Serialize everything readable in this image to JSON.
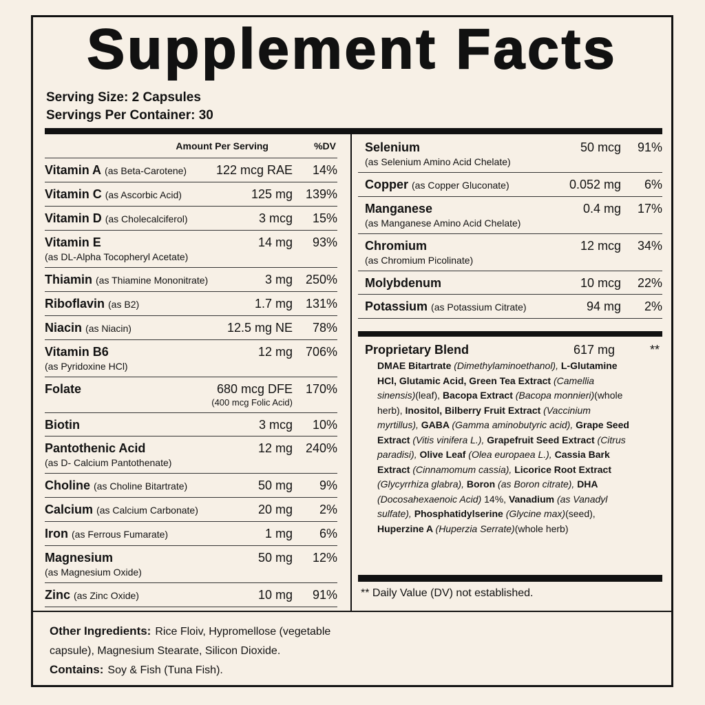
{
  "title": "Supplement Facts",
  "serving_size": "Serving Size: 2 Capsules",
  "servings_per_container": "Servings Per Container: 30",
  "left_column": {
    "header": {
      "amount": "Amount Per Serving",
      "dv": "%DV"
    },
    "rows": [
      {
        "name": "Vitamin A",
        "source": "(as Beta-Carotene)",
        "amount": "122 mcg RAE",
        "dv": "14%"
      },
      {
        "name": "Vitamin C",
        "source": "(as Ascorbic Acid)",
        "amount": "125 mg",
        "dv": "139%"
      },
      {
        "name": "Vitamin D",
        "source": "(as Cholecalciferol)",
        "amount": "3 mcg",
        "dv": "15%"
      },
      {
        "name": "Vitamin E",
        "note": "(as DL-Alpha Tocopheryl Acetate)",
        "amount": "14 mg",
        "dv": "93%"
      },
      {
        "name": "Thiamin",
        "source": "(as Thiamine Mononitrate)",
        "amount": "3 mg",
        "dv": "250%"
      },
      {
        "name": "Riboflavin",
        "source": "(as B2)",
        "amount": "1.7 mg",
        "dv": "131%"
      },
      {
        "name": "Niacin",
        "source": "(as Niacin)",
        "amount": "12.5 mg NE",
        "dv": "78%"
      },
      {
        "name": "Vitamin B6",
        "note": "(as Pyridoxine HCl)",
        "amount": "12 mg",
        "dv": "706%"
      },
      {
        "name": "Folate",
        "amount": "680 mcg DFE",
        "amount_note": "(400 mcg Folic Acid)",
        "dv": "170%"
      },
      {
        "name": "Biotin",
        "amount": "3 mcg",
        "dv": "10%"
      },
      {
        "name": "Pantothenic Acid",
        "note": "(as D- Calcium Pantothenate)",
        "amount": "12 mg",
        "dv": "240%"
      },
      {
        "name": "Choline",
        "source": "(as Choline Bitartrate)",
        "amount": "50 mg",
        "dv": "9%"
      },
      {
        "name": "Calcium",
        "source": "(as Calcium Carbonate)",
        "amount": "20 mg",
        "dv": "2%"
      },
      {
        "name": "Iron",
        "source": "(as Ferrous Fumarate)",
        "amount": "1 mg",
        "dv": "6%"
      },
      {
        "name": "Magnesium",
        "note": "(as Magnesium Oxide)",
        "amount": "50 mg",
        "dv": "12%"
      },
      {
        "name": "Zinc",
        "source": "(as Zinc Oxide)",
        "amount": "10 mg",
        "dv": "91%"
      }
    ]
  },
  "right_column": {
    "rows": [
      {
        "name": "Selenium",
        "note": "(as Selenium Amino Acid Chelate)",
        "amount": "50 mcg",
        "dv": "91%"
      },
      {
        "name": "Copper",
        "source": "(as Copper Gluconate)",
        "amount": "0.052 mg",
        "dv": "6%"
      },
      {
        "name": "Manganese",
        "note": "(as Manganese Amino Acid Chelate)",
        "amount": "0.4 mg",
        "dv": "17%"
      },
      {
        "name": "Chromium",
        "note": "(as Chromium Picolinate)",
        "amount": "12 mcg",
        "dv": "34%"
      },
      {
        "name": "Molybdenum",
        "amount": "10 mcg",
        "dv": "22%"
      },
      {
        "name": "Potassium",
        "source": "(as Potassium Citrate)",
        "amount": "94 mg",
        "dv": "2%"
      }
    ],
    "blend": {
      "name": "Proprietary Blend",
      "amount": "617 mg",
      "dv": "**",
      "ingredients": [
        {
          "text": "DMAE Bitartrate ",
          "style": "bold"
        },
        {
          "text": "(Dimethylaminoethanol), ",
          "style": "italic"
        },
        {
          "text": "L-Glutamine HCl, Glutamic Acid, Green Tea Extract ",
          "style": "bold"
        },
        {
          "text": "(Camellia sinensis)",
          "style": "italic"
        },
        {
          "text": "(leaf), ",
          "style": "regular"
        },
        {
          "text": "Bacopa Extract ",
          "style": "bold"
        },
        {
          "text": "(Bacopa monnieri)",
          "style": "italic"
        },
        {
          "text": "(whole herb), ",
          "style": "regular"
        },
        {
          "text": "Inositol, Bilberry Fruit Extract ",
          "style": "bold"
        },
        {
          "text": "(Vaccinium myrtillus), ",
          "style": "italic"
        },
        {
          "text": "GABA ",
          "style": "bold"
        },
        {
          "text": "(Gamma aminobutyric acid), ",
          "style": "italic"
        },
        {
          "text": "Grape Seed Extract ",
          "style": "bold"
        },
        {
          "text": "(Vitis vinifera L.), ",
          "style": "italic"
        },
        {
          "text": "Grapefruit Seed Extract ",
          "style": "bold"
        },
        {
          "text": "(Citrus paradisi), ",
          "style": "italic"
        },
        {
          "text": "Olive Leaf ",
          "style": "bold"
        },
        {
          "text": "(Olea europaea L.), ",
          "style": "italic"
        },
        {
          "text": "Cassia Bark Extract ",
          "style": "bold"
        },
        {
          "text": "(Cinnamomum cassia), ",
          "style": "italic"
        },
        {
          "text": "Licorice Root Extract ",
          "style": "bold"
        },
        {
          "text": "(Glycyrrhiza glabra), ",
          "style": "italic"
        },
        {
          "text": "Boron ",
          "style": "bold"
        },
        {
          "text": "(as Boron citrate), ",
          "style": "italic"
        },
        {
          "text": "DHA ",
          "style": "bold"
        },
        {
          "text": "(Docosahexaenoic Acid) ",
          "style": "italic"
        },
        {
          "text": "14%, ",
          "style": "regular"
        },
        {
          "text": "Vanadium ",
          "style": "bold"
        },
        {
          "text": "(as Vanadyl sulfate), ",
          "style": "italic"
        },
        {
          "text": "Phosphatidylserine ",
          "style": "bold"
        },
        {
          "text": "(Glycine max)",
          "style": "italic"
        },
        {
          "text": "(seed), ",
          "style": "regular"
        },
        {
          "text": "Huperzine A ",
          "style": "bold"
        },
        {
          "text": "(Huperzia Serrate)",
          "style": "italic"
        },
        {
          "text": "(whole herb)",
          "style": "regular"
        }
      ]
    },
    "footnote": "** Daily Value (DV) not established."
  },
  "other_ingredients": {
    "label": "Other Ingredients:",
    "text": "Rice Floiv, Hypromellose (vegetable capsule), Magnesium Stearate, Silicon Dioxide."
  },
  "contains": {
    "label": "Contains:",
    "text": "Soy & Fish (Tuna Fish)."
  }
}
